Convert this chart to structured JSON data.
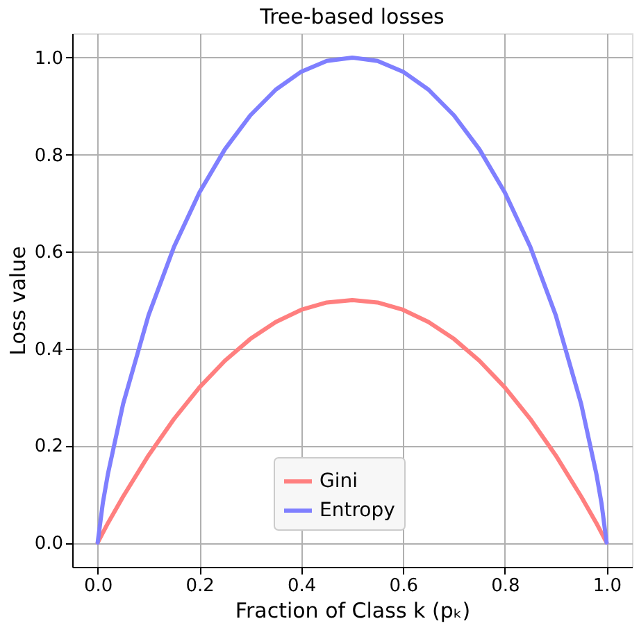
{
  "chart_data": {
    "type": "line",
    "title": "Tree-based losses",
    "xlabel": "Fraction of Class k (pₖ)",
    "ylabel": "Loss value",
    "x": [
      0,
      0.01,
      0.02,
      0.05,
      0.1,
      0.15,
      0.2,
      0.25,
      0.3,
      0.35,
      0.4,
      0.45,
      0.5,
      0.55,
      0.6,
      0.65,
      0.7,
      0.75,
      0.8,
      0.85,
      0.9,
      0.95,
      0.98,
      0.99,
      1
    ],
    "series": [
      {
        "name": "Gini",
        "color": "#ff7f7f",
        "values": [
          0,
          0.02,
          0.04,
          0.095,
          0.18,
          0.255,
          0.32,
          0.375,
          0.42,
          0.455,
          0.48,
          0.495,
          0.5,
          0.495,
          0.48,
          0.455,
          0.42,
          0.375,
          0.32,
          0.255,
          0.18,
          0.095,
          0.04,
          0.02,
          0
        ]
      },
      {
        "name": "Entropy",
        "color": "#7f7fff",
        "values": [
          0,
          0.081,
          0.141,
          0.286,
          0.469,
          0.61,
          0.722,
          0.811,
          0.881,
          0.934,
          0.971,
          0.993,
          1,
          0.993,
          0.971,
          0.934,
          0.881,
          0.811,
          0.722,
          0.61,
          0.469,
          0.286,
          0.141,
          0.081,
          0
        ]
      }
    ],
    "xlim": [
      -0.05,
      1.05
    ],
    "ylim": [
      -0.05,
      1.05
    ],
    "xticks": [
      {
        "value": 0,
        "label": "0.0"
      },
      {
        "value": 0.2,
        "label": "0.2"
      },
      {
        "value": 0.4,
        "label": "0.4"
      },
      {
        "value": 0.6,
        "label": "0.6"
      },
      {
        "value": 0.8,
        "label": "0.8"
      },
      {
        "value": 1,
        "label": "1.0"
      }
    ],
    "yticks": [
      {
        "value": 0,
        "label": "0.0"
      },
      {
        "value": 0.2,
        "label": "0.2"
      },
      {
        "value": 0.4,
        "label": "0.4"
      },
      {
        "value": 0.6,
        "label": "0.6"
      },
      {
        "value": 0.8,
        "label": "0.8"
      },
      {
        "value": 1,
        "label": "1.0"
      }
    ],
    "grid": true,
    "legend": "bottom",
    "marker": "none",
    "line_style": "solid"
  }
}
